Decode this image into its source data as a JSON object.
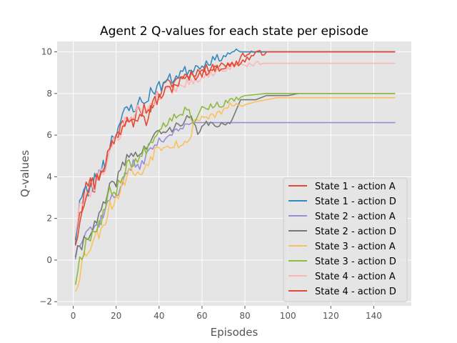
{
  "chart_data": {
    "type": "line",
    "title": "Agent 2 Q-values for each state per episode",
    "xlabel": "Episodes",
    "ylabel": "Q-values",
    "xlim": [
      -7.5,
      157.5
    ],
    "ylim": [
      -2.2,
      10.5
    ],
    "xticks": [
      0,
      20,
      40,
      60,
      80,
      100,
      120,
      140
    ],
    "yticks": [
      -2,
      0,
      2,
      4,
      6,
      8,
      10
    ],
    "grid": true,
    "legend_position": "lower-right",
    "x": {
      "start": 1,
      "end": 150,
      "step": 1
    },
    "series": [
      {
        "name": "State 1 - action A",
        "color": "#E24A33",
        "keypoints": [
          [
            1,
            1.2
          ],
          [
            3,
            2.4
          ],
          [
            5,
            3.0
          ],
          [
            7,
            3.9
          ],
          [
            10,
            3.5
          ],
          [
            13,
            4.4
          ],
          [
            15,
            4.3
          ],
          [
            17,
            5.4
          ],
          [
            20,
            6.0
          ],
          [
            23,
            6.5
          ],
          [
            25,
            7.0
          ],
          [
            28,
            6.7
          ],
          [
            30,
            7.2
          ],
          [
            33,
            6.6
          ],
          [
            35,
            6.9
          ],
          [
            37,
            7.6
          ],
          [
            40,
            8.0
          ],
          [
            43,
            8.4
          ],
          [
            46,
            8.5
          ],
          [
            50,
            8.8
          ],
          [
            53,
            8.9
          ],
          [
            55,
            9.0
          ],
          [
            60,
            9.1
          ],
          [
            65,
            9.3
          ],
          [
            70,
            9.4
          ],
          [
            75,
            9.4
          ],
          [
            80,
            9.9
          ],
          [
            85,
            10.0
          ],
          [
            150,
            10.0
          ]
        ],
        "amp": 0.45,
        "flat_after": 84,
        "seed": 11
      },
      {
        "name": "State 1 - action D",
        "color": "#348ABD",
        "keypoints": [
          [
            1,
            1.0
          ],
          [
            3,
            2.8
          ],
          [
            5,
            3.2
          ],
          [
            7,
            3.3
          ],
          [
            10,
            3.8
          ],
          [
            13,
            4.6
          ],
          [
            15,
            4.5
          ],
          [
            17,
            5.6
          ],
          [
            20,
            6.3
          ],
          [
            23,
            6.8
          ],
          [
            25,
            7.2
          ],
          [
            28,
            7.3
          ],
          [
            30,
            7.6
          ],
          [
            33,
            7.5
          ],
          [
            35,
            7.9
          ],
          [
            37,
            8.2
          ],
          [
            40,
            8.3
          ],
          [
            43,
            8.6
          ],
          [
            46,
            8.7
          ],
          [
            50,
            9.0
          ],
          [
            53,
            9.1
          ],
          [
            55,
            9.2
          ],
          [
            60,
            9.4
          ],
          [
            65,
            9.6
          ],
          [
            70,
            9.8
          ],
          [
            75,
            10.0
          ],
          [
            150,
            10.0
          ]
        ],
        "amp": 0.5,
        "flat_after": 78,
        "seed": 23
      },
      {
        "name": "State 2 - action A",
        "color": "#988ED5",
        "keypoints": [
          [
            1,
            0.2
          ],
          [
            3,
            0.9
          ],
          [
            5,
            1.4
          ],
          [
            7,
            1.6
          ],
          [
            10,
            1.5
          ],
          [
            13,
            2.0
          ],
          [
            15,
            2.5
          ],
          [
            17,
            2.9
          ],
          [
            20,
            3.1
          ],
          [
            23,
            3.8
          ],
          [
            25,
            4.2
          ],
          [
            28,
            4.6
          ],
          [
            30,
            4.4
          ],
          [
            33,
            4.8
          ],
          [
            35,
            5.2
          ],
          [
            37,
            5.4
          ],
          [
            40,
            5.7
          ],
          [
            43,
            5.9
          ],
          [
            46,
            6.1
          ],
          [
            50,
            6.3
          ],
          [
            55,
            6.6
          ],
          [
            150,
            6.6
          ]
        ],
        "amp": 0.35,
        "flat_after": 56,
        "seed": 37
      },
      {
        "name": "State 2 - action D",
        "color": "#777777",
        "keypoints": [
          [
            1,
            0.3
          ],
          [
            3,
            0.4
          ],
          [
            5,
            1.0
          ],
          [
            7,
            1.3
          ],
          [
            10,
            1.6
          ],
          [
            13,
            2.3
          ],
          [
            15,
            2.8
          ],
          [
            17,
            3.4
          ],
          [
            20,
            3.8
          ],
          [
            23,
            4.5
          ],
          [
            25,
            4.9
          ],
          [
            28,
            5.2
          ],
          [
            30,
            5.0
          ],
          [
            33,
            5.3
          ],
          [
            35,
            5.6
          ],
          [
            37,
            5.8
          ],
          [
            40,
            6.2
          ],
          [
            43,
            6.1
          ],
          [
            46,
            6.3
          ],
          [
            50,
            6.6
          ],
          [
            55,
            6.9
          ],
          [
            58,
            6.0
          ],
          [
            62,
            6.6
          ],
          [
            65,
            6.5
          ],
          [
            70,
            6.5
          ],
          [
            73,
            6.5
          ],
          [
            78,
            7.7
          ],
          [
            85,
            7.7
          ],
          [
            90,
            7.9
          ],
          [
            100,
            7.9
          ],
          [
            105,
            8.0
          ],
          [
            150,
            8.0
          ]
        ],
        "amp": 0.35,
        "flat_after": 74,
        "seed": 41
      },
      {
        "name": "State 3 - action A",
        "color": "#FBC15E",
        "keypoints": [
          [
            1,
            -1.3
          ],
          [
            3,
            -0.6
          ],
          [
            5,
            0.2
          ],
          [
            7,
            0.6
          ],
          [
            10,
            1.0
          ],
          [
            13,
            1.6
          ],
          [
            15,
            2.0
          ],
          [
            17,
            2.6
          ],
          [
            20,
            3.0
          ],
          [
            23,
            3.6
          ],
          [
            25,
            4.2
          ],
          [
            28,
            4.3
          ],
          [
            30,
            4.0
          ],
          [
            33,
            4.4
          ],
          [
            35,
            4.8
          ],
          [
            37,
            5.1
          ],
          [
            40,
            5.5
          ],
          [
            45,
            5.6
          ],
          [
            50,
            5.6
          ],
          [
            54,
            5.6
          ],
          [
            56,
            6.7
          ],
          [
            62,
            6.9
          ],
          [
            68,
            7.0
          ],
          [
            72,
            7.4
          ],
          [
            78,
            7.4
          ],
          [
            85,
            7.6
          ],
          [
            95,
            7.8
          ],
          [
            150,
            7.8
          ]
        ],
        "amp": 0.45,
        "flat_after": 80,
        "seed": 53
      },
      {
        "name": "State 3 - action D",
        "color": "#8EBA42",
        "keypoints": [
          [
            1,
            -1.0
          ],
          [
            3,
            0.0
          ],
          [
            5,
            0.6
          ],
          [
            7,
            1.2
          ],
          [
            10,
            1.4
          ],
          [
            13,
            2.0
          ],
          [
            15,
            2.6
          ],
          [
            17,
            3.2
          ],
          [
            20,
            3.4
          ],
          [
            23,
            4.1
          ],
          [
            25,
            4.5
          ],
          [
            28,
            4.8
          ],
          [
            30,
            4.7
          ],
          [
            33,
            5.2
          ],
          [
            35,
            5.5
          ],
          [
            37,
            5.9
          ],
          [
            40,
            6.3
          ],
          [
            45,
            6.8
          ],
          [
            50,
            7.1
          ],
          [
            53,
            7.3
          ],
          [
            56,
            6.7
          ],
          [
            60,
            7.3
          ],
          [
            65,
            7.4
          ],
          [
            70,
            7.5
          ],
          [
            75,
            7.7
          ],
          [
            80,
            7.9
          ],
          [
            90,
            8.0
          ],
          [
            150,
            8.0
          ]
        ],
        "amp": 0.4,
        "flat_after": 78,
        "seed": 67
      },
      {
        "name": "State 4 - action A",
        "color": "#FFB5B8",
        "keypoints": [
          [
            1,
            1.4
          ],
          [
            3,
            2.4
          ],
          [
            5,
            2.9
          ],
          [
            7,
            3.3
          ],
          [
            10,
            3.6
          ],
          [
            13,
            4.2
          ],
          [
            15,
            4.6
          ],
          [
            17,
            5.2
          ],
          [
            20,
            5.8
          ],
          [
            23,
            6.4
          ],
          [
            25,
            6.8
          ],
          [
            28,
            7.0
          ],
          [
            30,
            7.2
          ],
          [
            33,
            7.1
          ],
          [
            35,
            7.4
          ],
          [
            37,
            7.6
          ],
          [
            40,
            7.9
          ],
          [
            43,
            8.1
          ],
          [
            46,
            8.2
          ],
          [
            50,
            8.4
          ],
          [
            55,
            8.6
          ],
          [
            60,
            8.8
          ],
          [
            65,
            9.0
          ],
          [
            70,
            9.2
          ],
          [
            75,
            9.3
          ],
          [
            80,
            9.4
          ],
          [
            90,
            9.45
          ],
          [
            150,
            9.45
          ]
        ],
        "amp": 0.4,
        "flat_after": 88,
        "seed": 79
      },
      {
        "name": "State 4 - action D",
        "color": "#E24A33",
        "keypoints": [
          [
            1,
            0.9
          ],
          [
            3,
            2.0
          ],
          [
            5,
            3.0
          ],
          [
            7,
            3.6
          ],
          [
            10,
            3.7
          ],
          [
            13,
            4.3
          ],
          [
            15,
            4.8
          ],
          [
            17,
            5.3
          ],
          [
            20,
            5.9
          ],
          [
            23,
            6.5
          ],
          [
            25,
            6.8
          ],
          [
            28,
            7.1
          ],
          [
            30,
            7.0
          ],
          [
            33,
            7.3
          ],
          [
            35,
            7.2
          ],
          [
            37,
            7.5
          ],
          [
            40,
            7.8
          ],
          [
            43,
            8.1
          ],
          [
            46,
            8.3
          ],
          [
            50,
            8.6
          ],
          [
            55,
            8.8
          ],
          [
            60,
            9.0
          ],
          [
            65,
            9.2
          ],
          [
            70,
            9.3
          ],
          [
            75,
            9.4
          ],
          [
            80,
            9.6
          ],
          [
            85,
            9.9
          ],
          [
            90,
            10.0
          ],
          [
            150,
            10.0
          ]
        ],
        "amp": 0.45,
        "flat_after": 90,
        "seed": 97
      }
    ]
  }
}
